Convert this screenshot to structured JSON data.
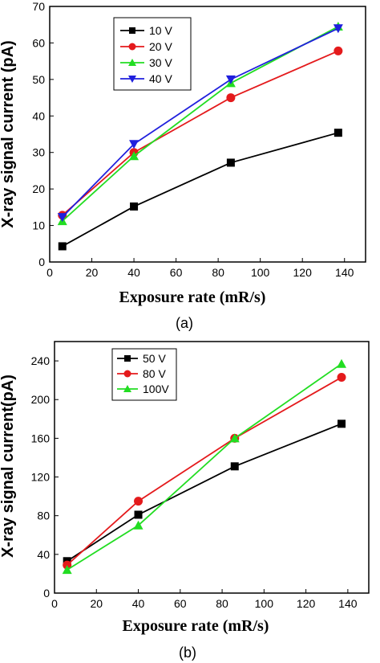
{
  "chart_data": [
    {
      "type": "line",
      "panel_label": "(a)",
      "xlabel": "Exposure rate (mR/s)",
      "ylabel": "X-ray signal current (pA)",
      "xlim": [
        0,
        150
      ],
      "ylim": [
        0,
        70
      ],
      "xticks": [
        "0",
        "20",
        "40",
        "60",
        "80",
        "100",
        "120",
        "140"
      ],
      "yticks": [
        "0",
        "10",
        "20",
        "30",
        "40",
        "50",
        "60",
        "70"
      ],
      "legend_position": "top-left",
      "grid": false,
      "x": [
        6,
        40,
        86,
        137
      ],
      "series": [
        {
          "name": "10 V",
          "color": "#000000",
          "marker": "square",
          "values": [
            4.3,
            15.2,
            27.2,
            35.4
          ]
        },
        {
          "name": "20 V",
          "color": "#e41a1c",
          "marker": "circle",
          "values": [
            12.8,
            30.0,
            45.0,
            57.8
          ]
        },
        {
          "name": "30 V",
          "color": "#22dd22",
          "marker": "triangle-up",
          "values": [
            11.2,
            29.0,
            49.0,
            64.5
          ]
        },
        {
          "name": "40 V",
          "color": "#1f1fdd",
          "marker": "triangle-down",
          "values": [
            12.3,
            32.3,
            50.0,
            64.0
          ]
        }
      ]
    },
    {
      "type": "line",
      "panel_label": "(b)",
      "xlabel": "Exposure rate (mR/s)",
      "ylabel": "X-ray signal current(pA)",
      "xlim": [
        0,
        150
      ],
      "ylim": [
        0,
        260
      ],
      "xticks": [
        "0",
        "20",
        "40",
        "60",
        "80",
        "100",
        "120",
        "140"
      ],
      "yticks": [
        "0",
        "40",
        "80",
        "120",
        "160",
        "200",
        "240"
      ],
      "legend_position": "top-left",
      "grid": false,
      "x": [
        6,
        40,
        86,
        137
      ],
      "series": [
        {
          "name": "50 V",
          "color": "#000000",
          "marker": "square",
          "values": [
            33,
            81,
            131,
            175
          ]
        },
        {
          "name": "80 V",
          "color": "#e41a1c",
          "marker": "circle",
          "values": [
            29,
            95,
            160,
            223
          ]
        },
        {
          "name": "100V",
          "color": "#22dd22",
          "marker": "triangle-up",
          "values": [
            24,
            70,
            160,
            237
          ]
        }
      ]
    }
  ]
}
